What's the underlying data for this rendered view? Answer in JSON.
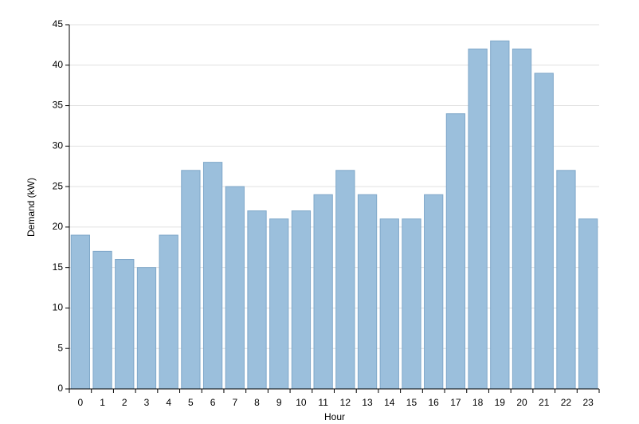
{
  "chart_data": {
    "type": "bar",
    "x_label": "Hour",
    "y_label": "Demand (kW)",
    "categories": [
      "0",
      "1",
      "2",
      "3",
      "4",
      "5",
      "6",
      "7",
      "8",
      "9",
      "10",
      "11",
      "12",
      "13",
      "14",
      "15",
      "16",
      "17",
      "18",
      "19",
      "20",
      "21",
      "22",
      "23"
    ],
    "values": [
      19,
      17,
      16,
      15,
      19,
      27,
      28,
      25,
      22,
      21,
      22,
      24,
      27,
      24,
      21,
      21,
      24,
      34,
      42,
      43,
      42,
      39,
      27,
      21
    ],
    "color": "#9bbfdc",
    "ylim": [
      0,
      45
    ],
    "yticks": [
      0,
      5,
      10,
      15,
      20,
      25,
      30,
      35,
      40,
      45
    ],
    "grid": true
  }
}
